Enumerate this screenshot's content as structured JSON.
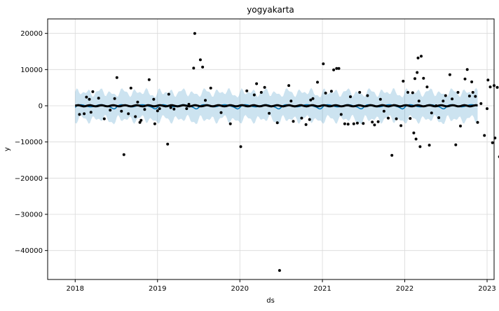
{
  "chart_data": {
    "type": "scatter",
    "title": "yogyakarta",
    "xlabel": "ds",
    "ylabel": "y",
    "x_ticks": [
      "2018",
      "2019",
      "2020",
      "2021",
      "2022",
      "2023"
    ],
    "y_ticks": [
      20000,
      10000,
      0,
      -10000,
      -20000,
      -30000,
      -40000
    ],
    "xlim": [
      "2017-09-01",
      "2023-02-01"
    ],
    "ylim": [
      -48000,
      24000
    ],
    "grid": true,
    "colors": {
      "points": "#000000",
      "forecast_line": "#0072B2",
      "interval_band": "#0072B2",
      "grid": "#d9d9d9"
    },
    "series": [
      {
        "type": "scatter",
        "points": [
          [
            "2018-01-20",
            -2400
          ],
          [
            "2018-02-10",
            -2200
          ],
          [
            "2018-02-20",
            2400
          ],
          [
            "2018-03-05",
            1800
          ],
          [
            "2018-03-12",
            -1800
          ],
          [
            "2018-03-20",
            3900
          ],
          [
            "2018-04-15",
            2100
          ],
          [
            "2018-05-10",
            -3600
          ],
          [
            "2018-06-05",
            -1200
          ],
          [
            "2018-06-25",
            2000
          ],
          [
            "2018-07-05",
            7800
          ],
          [
            "2018-07-25",
            -1500
          ],
          [
            "2018-08-05",
            -13500
          ],
          [
            "2018-08-25",
            -2200
          ],
          [
            "2018-09-05",
            4900
          ],
          [
            "2018-09-25",
            -3000
          ],
          [
            "2018-10-05",
            1000
          ],
          [
            "2018-10-15",
            -4600
          ],
          [
            "2018-10-20",
            -4000
          ],
          [
            "2018-11-05",
            -1000
          ],
          [
            "2018-11-25",
            7200
          ],
          [
            "2018-12-15",
            1800
          ],
          [
            "2018-12-20",
            -5000
          ],
          [
            "2019-01-01",
            -1400
          ],
          [
            "2019-01-10",
            -800
          ],
          [
            "2019-02-15",
            -10600
          ],
          [
            "2019-02-20",
            3200
          ],
          [
            "2019-03-01",
            -500
          ],
          [
            "2019-03-15",
            -900
          ],
          [
            "2019-05-10",
            -800
          ],
          [
            "2019-05-20",
            400
          ],
          [
            "2019-06-10",
            10400
          ],
          [
            "2019-06-15",
            20000
          ],
          [
            "2019-07-10",
            12700
          ],
          [
            "2019-07-20",
            10700
          ],
          [
            "2019-08-01",
            1500
          ],
          [
            "2019-08-25",
            4900
          ],
          [
            "2019-10-10",
            -1900
          ],
          [
            "2019-11-20",
            -5000
          ],
          [
            "2020-01-05",
            -11300
          ],
          [
            "2020-02-01",
            4100
          ],
          [
            "2020-03-05",
            3000
          ],
          [
            "2020-03-15",
            6100
          ],
          [
            "2020-04-05",
            3700
          ],
          [
            "2020-04-20",
            5100
          ],
          [
            "2020-05-10",
            -2100
          ],
          [
            "2020-06-15",
            -4700
          ],
          [
            "2020-06-25",
            -45500
          ],
          [
            "2020-08-05",
            5600
          ],
          [
            "2020-08-15",
            1300
          ],
          [
            "2020-08-25",
            -4300
          ],
          [
            "2020-10-01",
            -3400
          ],
          [
            "2020-10-20",
            -5200
          ],
          [
            "2020-11-05",
            -3800
          ],
          [
            "2020-11-10",
            1600
          ],
          [
            "2020-11-20",
            2000
          ],
          [
            "2020-12-10",
            6500
          ],
          [
            "2021-01-05",
            11600
          ],
          [
            "2021-01-15",
            3500
          ],
          [
            "2021-02-10",
            4000
          ],
          [
            "2021-02-20",
            9900
          ],
          [
            "2021-03-05",
            10300
          ],
          [
            "2021-03-15",
            10300
          ],
          [
            "2021-03-25",
            -2400
          ],
          [
            "2021-04-10",
            -5000
          ],
          [
            "2021-04-25",
            -5100
          ],
          [
            "2021-05-05",
            2500
          ],
          [
            "2021-05-20",
            -5000
          ],
          [
            "2021-06-05",
            -4800
          ],
          [
            "2021-06-15",
            3700
          ],
          [
            "2021-07-01",
            -4900
          ],
          [
            "2021-07-20",
            2800
          ],
          [
            "2021-08-10",
            -4500
          ],
          [
            "2021-08-20",
            -5300
          ],
          [
            "2021-09-05",
            -4400
          ],
          [
            "2021-09-15",
            1800
          ],
          [
            "2021-10-01",
            -1500
          ],
          [
            "2021-10-20",
            -3400
          ],
          [
            "2021-11-05",
            -13700
          ],
          [
            "2021-11-25",
            -3600
          ],
          [
            "2021-12-15",
            -5500
          ],
          [
            "2021-12-25",
            6800
          ],
          [
            "2022-01-15",
            3700
          ],
          [
            "2022-01-25",
            -3500
          ],
          [
            "2022-02-05",
            3600
          ],
          [
            "2022-02-10",
            -7500
          ],
          [
            "2022-02-15",
            7500
          ],
          [
            "2022-02-20",
            -9200
          ],
          [
            "2022-02-25",
            9200
          ],
          [
            "2022-03-01",
            13200
          ],
          [
            "2022-03-05",
            1300
          ],
          [
            "2022-03-10",
            -11300
          ],
          [
            "2022-03-15",
            13700
          ],
          [
            "2022-03-25",
            7600
          ],
          [
            "2022-04-10",
            5200
          ],
          [
            "2022-04-20",
            -10900
          ],
          [
            "2022-04-30",
            -2000
          ],
          [
            "2022-05-20",
            0
          ],
          [
            "2022-06-01",
            -3300
          ],
          [
            "2022-06-20",
            1300
          ],
          [
            "2022-07-01",
            2800
          ],
          [
            "2022-07-20",
            8600
          ],
          [
            "2022-07-30",
            1900
          ],
          [
            "2022-08-15",
            -10800
          ],
          [
            "2022-08-25",
            3700
          ],
          [
            "2022-09-05",
            -5600
          ],
          [
            "2022-09-25",
            7400
          ],
          [
            "2022-10-05",
            10000
          ],
          [
            "2022-10-15",
            2700
          ],
          [
            "2022-10-25",
            6600
          ],
          [
            "2022-10-30",
            3700
          ],
          [
            "2022-11-10",
            2600
          ],
          [
            "2022-11-20",
            -4600
          ],
          [
            "2022-12-05",
            600
          ],
          [
            "2022-12-20",
            -8200
          ],
          [
            "2023-01-01",
            -800
          ],
          [
            "2023-01-05",
            7100
          ],
          [
            "2023-01-15",
            5200
          ],
          [
            "2023-01-25",
            -10200
          ],
          [
            "2023-02-01",
            5600
          ],
          [
            "2023-02-05",
            -8900
          ],
          [
            "2023-02-15",
            5100
          ],
          [
            "2023-02-25",
            -14100
          ]
        ]
      }
    ]
  }
}
